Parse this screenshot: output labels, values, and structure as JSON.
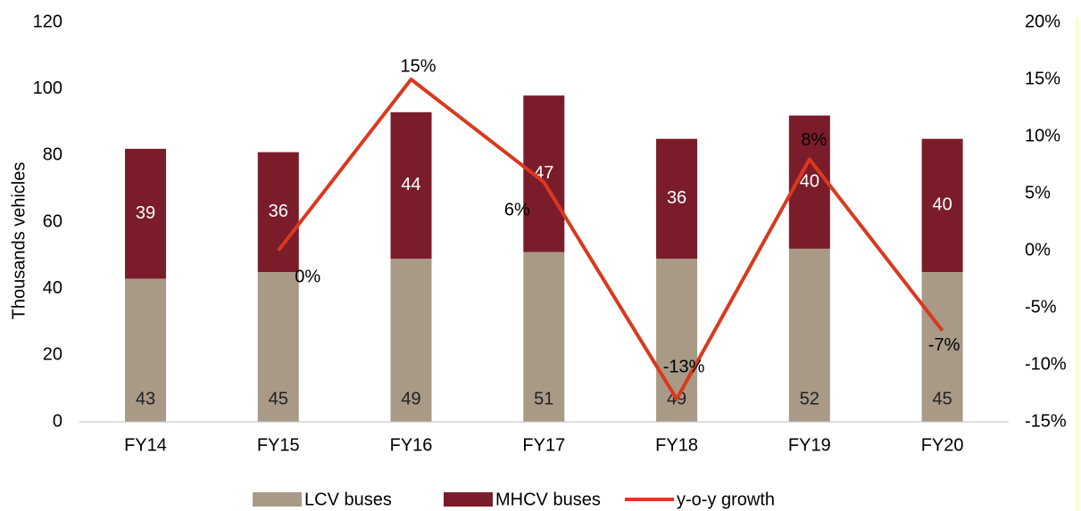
{
  "chart_data": {
    "type": "bar-line",
    "y_label": "Thousands vehicles",
    "categories": [
      "FY14",
      "FY15",
      "FY16",
      "FY17",
      "FY18",
      "FY19",
      "FY20"
    ],
    "series": [
      {
        "name": "LCV buses",
        "color": "#a89a87",
        "values": [
          43,
          45,
          49,
          51,
          49,
          52,
          45
        ]
      },
      {
        "name": "MHCV buses",
        "color": "#7b1c2a",
        "values": [
          39,
          36,
          44,
          47,
          36,
          40,
          40
        ]
      },
      {
        "name": "y-o-y growth",
        "color": "#d9391e",
        "axis": "y2",
        "values": [
          null,
          0,
          15,
          6,
          -13,
          8,
          -7
        ],
        "value_labels": [
          null,
          "0%",
          "15%",
          "6%",
          "-13%",
          "8%",
          "-7%"
        ]
      }
    ],
    "ylim": [
      0,
      120
    ],
    "yticks": [
      0,
      20,
      40,
      60,
      80,
      100,
      120
    ],
    "y2lim": [
      -15,
      20
    ],
    "y2ticks": [
      {
        "value": -15,
        "label": "-15%"
      },
      {
        "value": -10,
        "label": "-10%"
      },
      {
        "value": -5,
        "label": "-5%"
      },
      {
        "value": 0,
        "label": "0%"
      },
      {
        "value": 5,
        "label": "5%"
      },
      {
        "value": 10,
        "label": "10%"
      },
      {
        "value": 15,
        "label": "15%"
      },
      {
        "value": 20,
        "label": "20%"
      }
    ],
    "legend": "bottom"
  }
}
